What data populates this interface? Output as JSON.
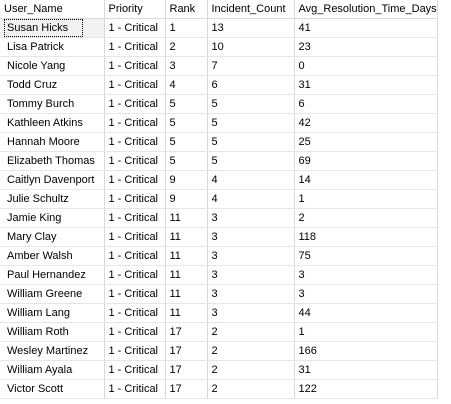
{
  "results_grid": {
    "columns": [
      "User_Name",
      "Priority",
      "Rank",
      "Incident_Count",
      "Avg_Resolution_Time_Days"
    ],
    "rows": [
      [
        "Susan Hicks",
        "1 - Critical",
        "1",
        "13",
        "41"
      ],
      [
        "Lisa Patrick",
        "1 - Critical",
        "2",
        "10",
        "23"
      ],
      [
        "Nicole Yang",
        "1 - Critical",
        "3",
        "7",
        "0"
      ],
      [
        "Todd Cruz",
        "1 - Critical",
        "4",
        "6",
        "31"
      ],
      [
        "Tommy Burch",
        "1 - Critical",
        "5",
        "5",
        "6"
      ],
      [
        "Kathleen Atkins",
        "1 - Critical",
        "5",
        "5",
        "42"
      ],
      [
        "Hannah Moore",
        "1 - Critical",
        "5",
        "5",
        "25"
      ],
      [
        "Elizabeth Thomas",
        "1 - Critical",
        "5",
        "5",
        "69"
      ],
      [
        "Caitlyn Davenport",
        "1 - Critical",
        "9",
        "4",
        "14"
      ],
      [
        "Julie Schultz",
        "1 - Critical",
        "9",
        "4",
        "1"
      ],
      [
        "Jamie King",
        "1 - Critical",
        "11",
        "3",
        "2"
      ],
      [
        "Mary Clay",
        "1 - Critical",
        "11",
        "3",
        "118"
      ],
      [
        "Amber Walsh",
        "1 - Critical",
        "11",
        "3",
        "75"
      ],
      [
        "Paul Hernandez",
        "1 - Critical",
        "11",
        "3",
        "3"
      ],
      [
        "William Greene",
        "1 - Critical",
        "11",
        "3",
        "3"
      ],
      [
        "William Lang",
        "1 - Critical",
        "11",
        "3",
        "44"
      ],
      [
        "William Roth",
        "1 - Critical",
        "17",
        "2",
        "1"
      ],
      [
        "Wesley Martinez",
        "1 - Critical",
        "17",
        "2",
        "166"
      ],
      [
        "William Ayala",
        "1 - Critical",
        "17",
        "2",
        "31"
      ],
      [
        "Victor Scott",
        "1 - Critical",
        "17",
        "2",
        "122"
      ]
    ],
    "selected_row": 0,
    "selected_column": 0
  }
}
